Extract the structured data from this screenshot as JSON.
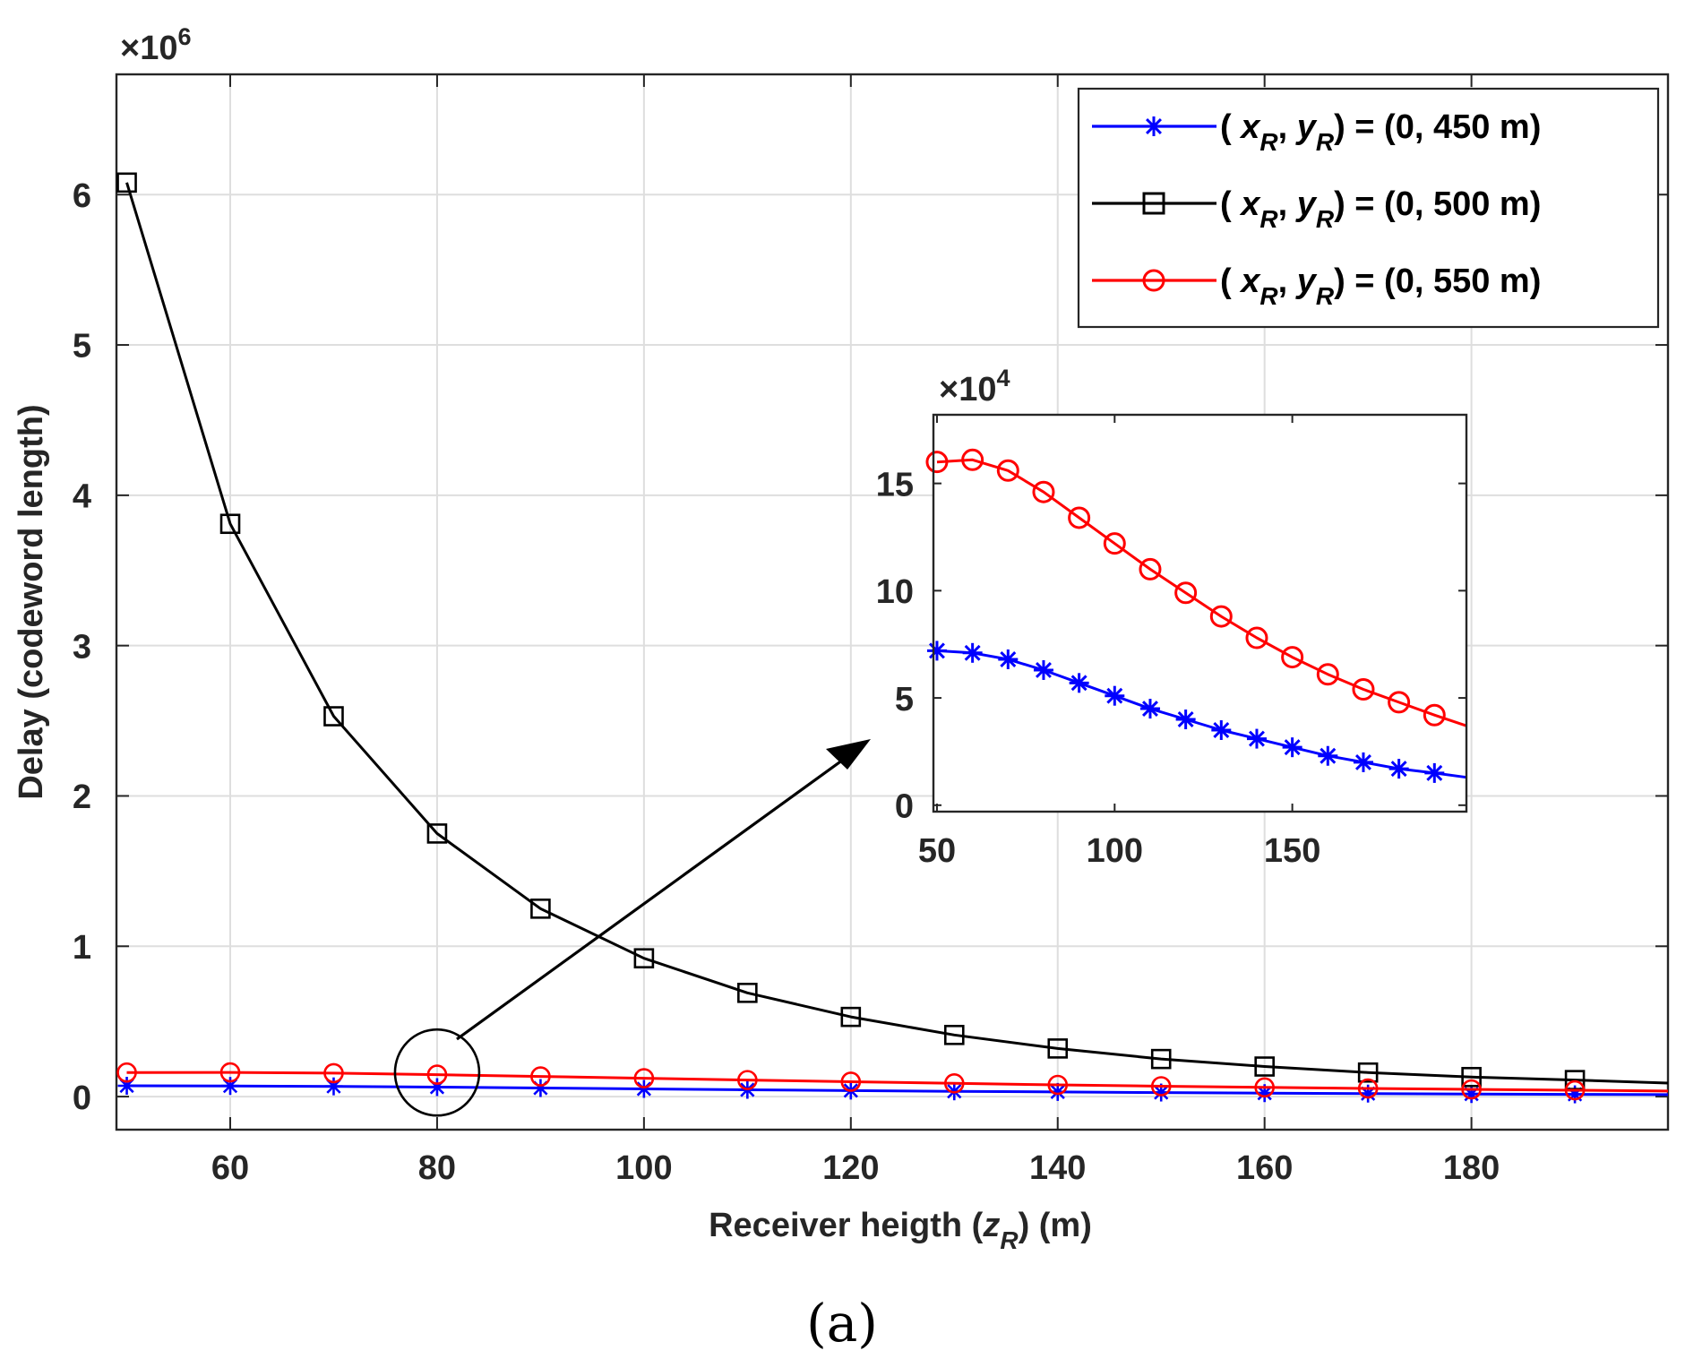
{
  "chart_data": [
    {
      "id": "main",
      "type": "line",
      "title": "",
      "xlabel": "Receiver heigth (z_R) (m)",
      "xlabel_parts": {
        "before": "Receiver heigth (",
        "var": "z",
        "sub": "R",
        "after": ") (m)"
      },
      "ylabel": "Delay (codeword length)",
      "y_exponent_label": "×10^6",
      "y_exponent_parts": {
        "base": "×10",
        "exp": "6"
      },
      "xlim": [
        49,
        199
      ],
      "ylim": [
        -0.22,
        6.8
      ],
      "y_scale": 1000000,
      "grid": true,
      "legend_position": "top-right",
      "xticks": [
        60,
        80,
        100,
        120,
        140,
        160,
        180
      ],
      "xtick_labels": [
        "60",
        "80",
        "100",
        "120",
        "140",
        "160",
        "180"
      ],
      "yticks": [
        0,
        1,
        2,
        3,
        4,
        5,
        6
      ],
      "ytick_labels": [
        "0",
        "1",
        "2",
        "3",
        "4",
        "5",
        "6"
      ],
      "x": [
        50,
        60,
        70,
        80,
        90,
        100,
        110,
        120,
        130,
        140,
        150,
        160,
        170,
        180,
        190,
        199
      ],
      "series": [
        {
          "name": "( x_R', y_R) = (0, 450 m)",
          "legend_parts": {
            "open": "( ",
            "x": "x",
            "xsub": "R",
            "comma": ",",
            "y": "y",
            "ysub": "R",
            "rest": ") = (0, 450 m)"
          },
          "color": "#0000ff",
          "marker": "asterisk",
          "values": [
            0.072,
            0.071,
            0.068,
            0.063,
            0.057,
            0.051,
            0.045,
            0.04,
            0.035,
            0.031,
            0.027,
            0.023,
            0.02,
            0.017,
            0.015,
            0.013
          ]
        },
        {
          "name": "( x_R', y_R) = (0, 500 m)",
          "legend_parts": {
            "open": "( ",
            "x": "x",
            "xsub": "R",
            "comma": ",",
            "y": "y",
            "ysub": "R",
            "rest": ") = (0, 500 m)"
          },
          "color": "#000000",
          "marker": "square",
          "values": [
            6.08,
            3.81,
            2.53,
            1.75,
            1.25,
            0.92,
            0.69,
            0.53,
            0.41,
            0.32,
            0.25,
            0.2,
            0.16,
            0.13,
            0.11,
            0.09
          ]
        },
        {
          "name": "( x_R', y_R) = (0, 550 m)",
          "legend_parts": {
            "open": "( ",
            "x": "x",
            "xsub": "R",
            "comma": ",",
            "y": "y",
            "ysub": "R",
            "rest": ") = (0, 550 m)"
          },
          "color": "#ff0000",
          "marker": "circle",
          "values": [
            0.16,
            0.161,
            0.156,
            0.146,
            0.134,
            0.122,
            0.11,
            0.099,
            0.088,
            0.078,
            0.069,
            0.061,
            0.054,
            0.048,
            0.042,
            0.037
          ]
        }
      ],
      "annotation": {
        "type": "zoom-circle-arrow",
        "center_x": 80,
        "center_y": 0.16
      }
    },
    {
      "id": "inset",
      "type": "line",
      "title": "",
      "y_exponent_label": "×10^4",
      "y_exponent_parts": {
        "base": "×10",
        "exp": "4"
      },
      "xlim": [
        49,
        199
      ],
      "ylim": [
        -0.3,
        18.2
      ],
      "y_scale": 10000,
      "grid": false,
      "xticks": [
        50,
        100,
        150
      ],
      "xtick_labels": [
        "50",
        "100",
        "150"
      ],
      "yticks": [
        0,
        5,
        10,
        15
      ],
      "ytick_labels": [
        "0",
        "5",
        "10",
        "15"
      ],
      "x": [
        50,
        60,
        70,
        80,
        90,
        100,
        110,
        120,
        130,
        140,
        150,
        160,
        170,
        180,
        190,
        199
      ],
      "series": [
        {
          "name": "(0, 450 m)",
          "color": "#0000ff",
          "marker": "asterisk",
          "values": [
            7.2,
            7.1,
            6.8,
            6.3,
            5.7,
            5.1,
            4.5,
            4.0,
            3.5,
            3.1,
            2.7,
            2.3,
            2.0,
            1.7,
            1.5,
            1.3
          ]
        },
        {
          "name": "(0, 550 m)",
          "color": "#ff0000",
          "marker": "circle",
          "values": [
            16.0,
            16.1,
            15.6,
            14.6,
            13.4,
            12.2,
            11.0,
            9.9,
            8.8,
            7.8,
            6.9,
            6.1,
            5.4,
            4.8,
            4.2,
            3.7
          ]
        }
      ]
    }
  ],
  "caption": "(a)"
}
